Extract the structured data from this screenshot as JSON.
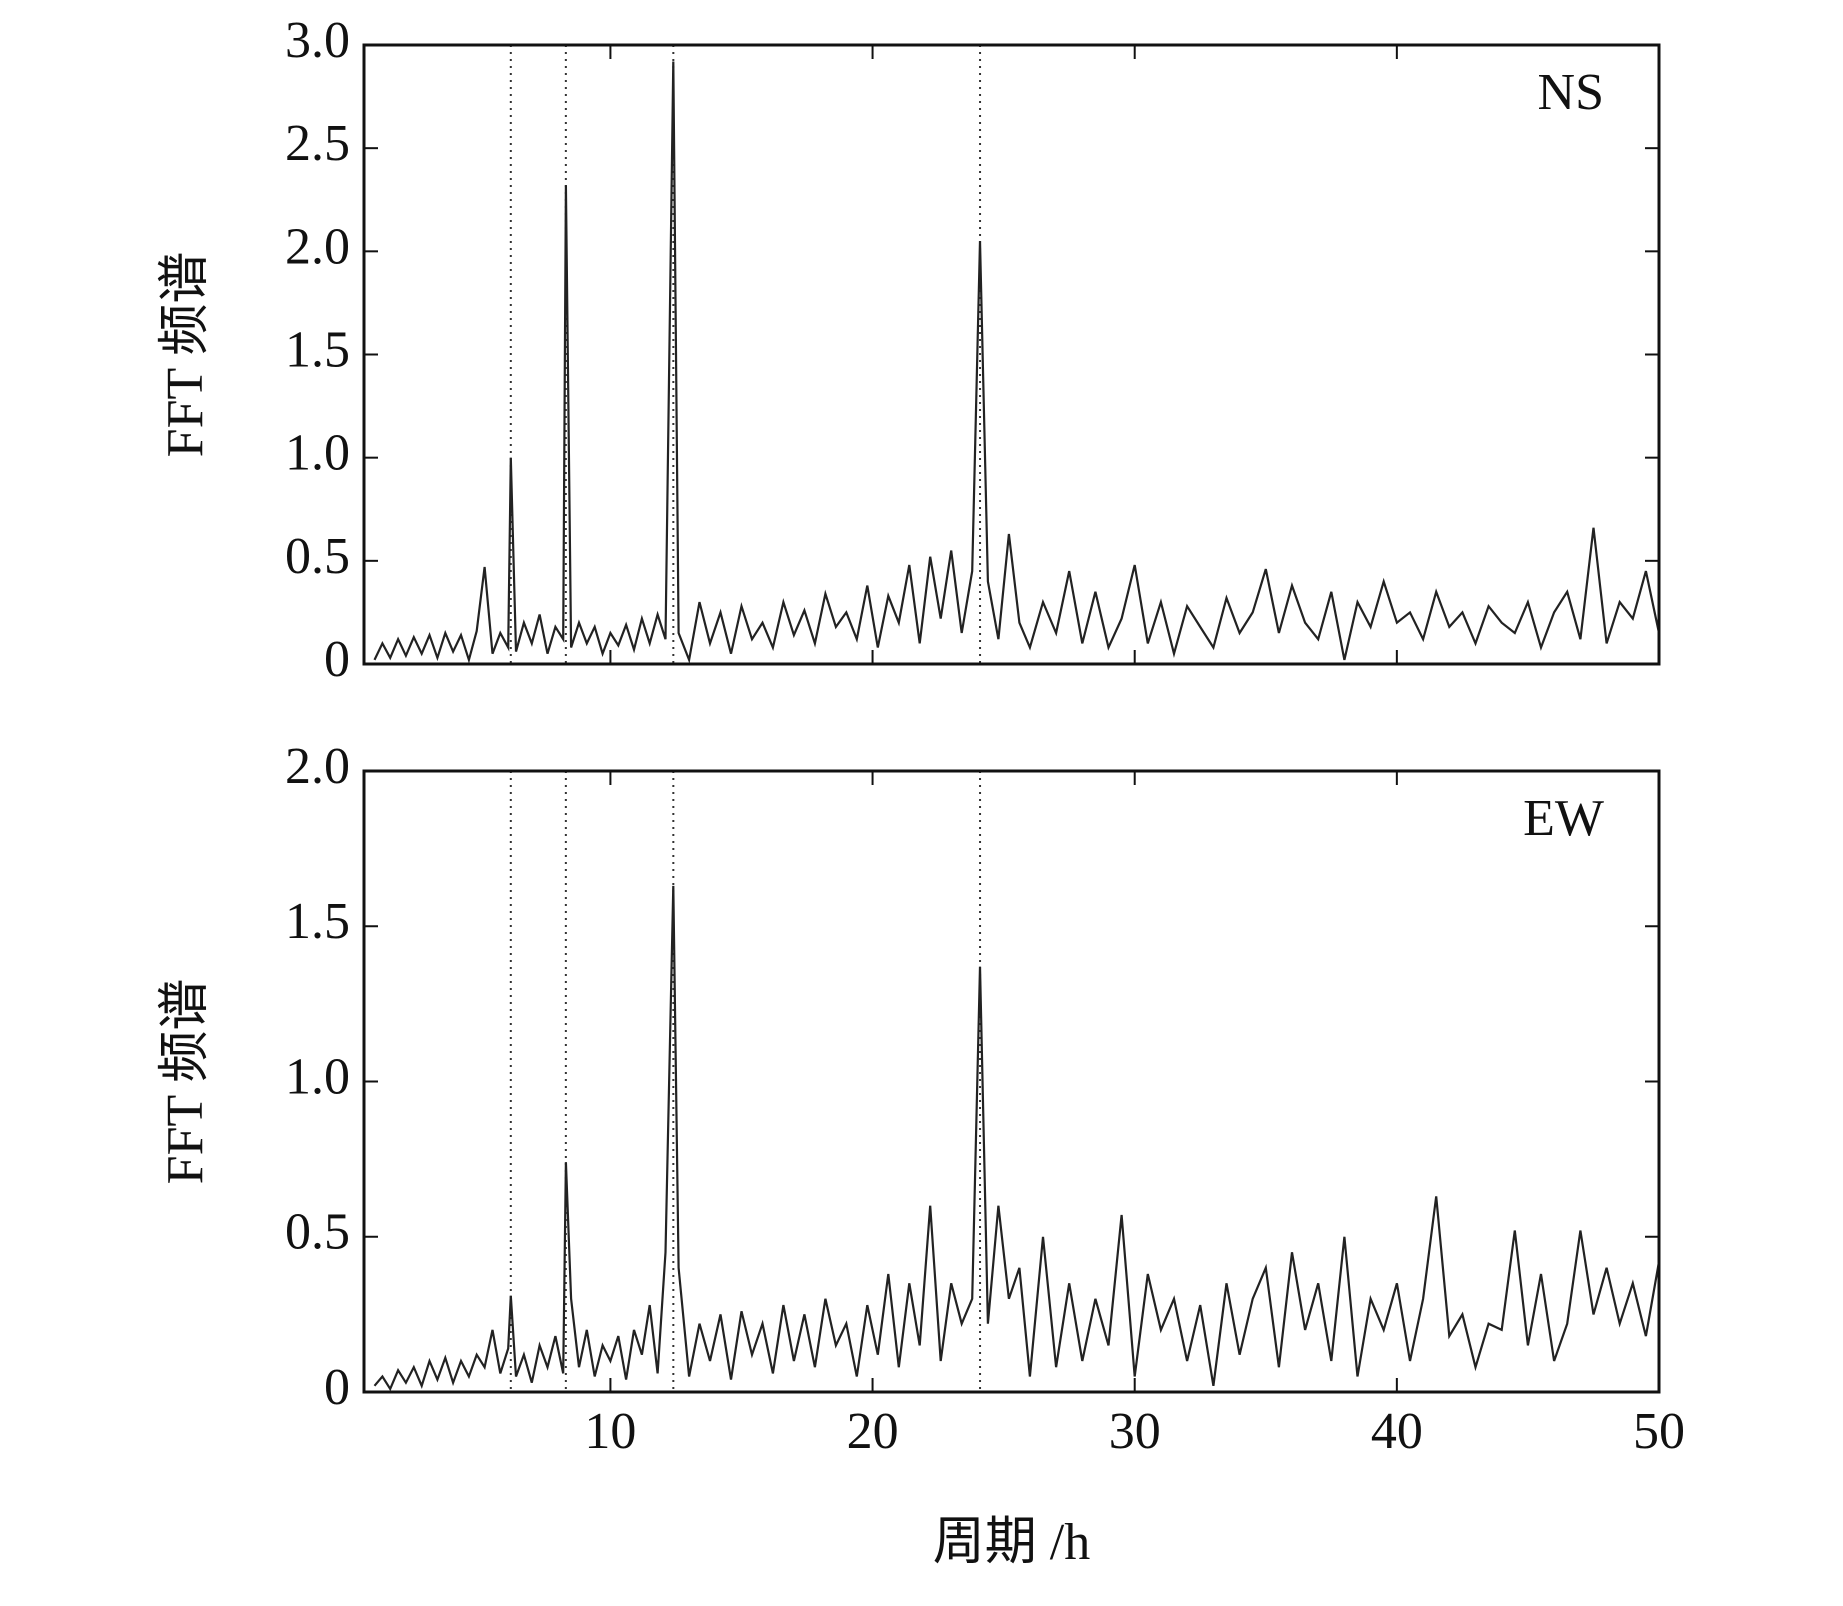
{
  "chart_data": [
    {
      "type": "line",
      "annotation": "NS",
      "ylabel": "FFT 频谱",
      "color": "#222222",
      "xlim": [
        0.6,
        50
      ],
      "ylim": [
        0,
        3.0
      ],
      "yticks": [
        0,
        0.5,
        {
          "value": 1,
          "label": "1.0"
        },
        1.5,
        {
          "value": 2,
          "label": "2.0"
        },
        2.5,
        {
          "value": 3,
          "label": "3.0"
        }
      ],
      "reference_lines": [
        6.2,
        8.3,
        12.4,
        24.1
      ],
      "x": [
        1.0,
        1.3,
        1.6,
        1.9,
        2.2,
        2.5,
        2.8,
        3.1,
        3.4,
        3.7,
        4.0,
        4.3,
        4.6,
        4.9,
        5.2,
        5.5,
        5.8,
        6.1,
        6.2,
        6.4,
        6.7,
        7.0,
        7.3,
        7.6,
        7.9,
        8.2,
        8.3,
        8.5,
        8.8,
        9.1,
        9.4,
        9.7,
        10.0,
        10.3,
        10.6,
        10.9,
        11.2,
        11.5,
        11.8,
        12.1,
        12.4,
        12.6,
        13.0,
        13.4,
        13.8,
        14.2,
        14.6,
        15.0,
        15.4,
        15.8,
        16.2,
        16.6,
        17.0,
        17.4,
        17.8,
        18.2,
        18.6,
        19.0,
        19.4,
        19.8,
        20.2,
        20.6,
        21.0,
        21.4,
        21.8,
        22.2,
        22.6,
        23.0,
        23.4,
        23.8,
        24.1,
        24.4,
        24.8,
        25.2,
        25.6,
        26.0,
        26.5,
        27.0,
        27.5,
        28.0,
        28.5,
        29.0,
        29.5,
        30.0,
        30.5,
        31.0,
        31.5,
        32.0,
        32.5,
        33.0,
        33.5,
        34.0,
        34.5,
        35.0,
        35.5,
        36.0,
        36.5,
        37.0,
        37.5,
        38.0,
        38.5,
        39.0,
        39.5,
        40.0,
        40.5,
        41.0,
        41.5,
        42.0,
        42.5,
        43.0,
        43.5,
        44.0,
        44.5,
        45.0,
        45.5,
        46.0,
        46.5,
        47.0,
        47.5,
        48.0,
        48.5,
        49.0,
        49.5,
        50.0
      ],
      "values": [
        0.02,
        0.1,
        0.03,
        0.12,
        0.04,
        0.13,
        0.05,
        0.14,
        0.03,
        0.15,
        0.06,
        0.14,
        0.02,
        0.16,
        0.47,
        0.05,
        0.15,
        0.08,
        1.0,
        0.06,
        0.2,
        0.1,
        0.24,
        0.05,
        0.18,
        0.12,
        2.32,
        0.08,
        0.2,
        0.1,
        0.18,
        0.05,
        0.15,
        0.09,
        0.19,
        0.07,
        0.22,
        0.1,
        0.24,
        0.12,
        2.92,
        0.15,
        0.02,
        0.3,
        0.1,
        0.25,
        0.05,
        0.28,
        0.12,
        0.2,
        0.08,
        0.3,
        0.14,
        0.26,
        0.1,
        0.34,
        0.18,
        0.25,
        0.12,
        0.38,
        0.08,
        0.33,
        0.2,
        0.48,
        0.1,
        0.52,
        0.22,
        0.55,
        0.15,
        0.45,
        2.05,
        0.4,
        0.12,
        0.63,
        0.2,
        0.08,
        0.3,
        0.15,
        0.45,
        0.1,
        0.35,
        0.08,
        0.22,
        0.48,
        0.1,
        0.3,
        0.05,
        0.28,
        0.18,
        0.08,
        0.32,
        0.15,
        0.25,
        0.46,
        0.15,
        0.38,
        0.2,
        0.12,
        0.35,
        0.02,
        0.3,
        0.18,
        0.4,
        0.2,
        0.25,
        0.12,
        0.35,
        0.18,
        0.25,
        0.1,
        0.28,
        0.2,
        0.15,
        0.3,
        0.08,
        0.25,
        0.35,
        0.12,
        0.66,
        0.1,
        0.3,
        0.22,
        0.45,
        0.15
      ]
    },
    {
      "type": "line",
      "annotation": "EW",
      "ylabel": "FFT 频谱",
      "xlabel": "周期 /h",
      "color": "#222222",
      "xlim": [
        0.6,
        50
      ],
      "ylim": [
        0,
        2.0
      ],
      "xticks": [
        10,
        20,
        30,
        40,
        50
      ],
      "yticks": [
        0,
        0.5,
        {
          "value": 1,
          "label": "1.0"
        },
        1.5,
        {
          "value": 2,
          "label": "2.0"
        }
      ],
      "reference_lines": [
        6.2,
        8.3,
        12.4,
        24.1
      ],
      "x": [
        1.0,
        1.3,
        1.6,
        1.9,
        2.2,
        2.5,
        2.8,
        3.1,
        3.4,
        3.7,
        4.0,
        4.3,
        4.6,
        4.9,
        5.2,
        5.5,
        5.8,
        6.1,
        6.2,
        6.4,
        6.7,
        7.0,
        7.3,
        7.6,
        7.9,
        8.2,
        8.3,
        8.5,
        8.8,
        9.1,
        9.4,
        9.7,
        10.0,
        10.3,
        10.6,
        10.9,
        11.2,
        11.5,
        11.8,
        12.1,
        12.4,
        12.6,
        13.0,
        13.4,
        13.8,
        14.2,
        14.6,
        15.0,
        15.4,
        15.8,
        16.2,
        16.6,
        17.0,
        17.4,
        17.8,
        18.2,
        18.6,
        19.0,
        19.4,
        19.8,
        20.2,
        20.6,
        21.0,
        21.4,
        21.8,
        22.2,
        22.6,
        23.0,
        23.4,
        23.8,
        24.1,
        24.4,
        24.8,
        25.2,
        25.6,
        26.0,
        26.5,
        27.0,
        27.5,
        28.0,
        28.5,
        29.0,
        29.5,
        30.0,
        30.5,
        31.0,
        31.5,
        32.0,
        32.5,
        33.0,
        33.5,
        34.0,
        34.5,
        35.0,
        35.5,
        36.0,
        36.5,
        37.0,
        37.5,
        38.0,
        38.5,
        39.0,
        39.5,
        40.0,
        40.5,
        41.0,
        41.5,
        42.0,
        42.5,
        43.0,
        43.5,
        44.0,
        44.5,
        45.0,
        45.5,
        46.0,
        46.5,
        47.0,
        47.5,
        48.0,
        48.5,
        49.0,
        49.5,
        50.0
      ],
      "values": [
        0.02,
        0.05,
        0.01,
        0.07,
        0.03,
        0.08,
        0.02,
        0.1,
        0.04,
        0.11,
        0.03,
        0.1,
        0.05,
        0.12,
        0.08,
        0.2,
        0.06,
        0.14,
        0.31,
        0.05,
        0.12,
        0.03,
        0.15,
        0.08,
        0.18,
        0.06,
        0.74,
        0.3,
        0.08,
        0.2,
        0.05,
        0.15,
        0.1,
        0.18,
        0.04,
        0.2,
        0.12,
        0.28,
        0.06,
        0.45,
        1.63,
        0.4,
        0.05,
        0.22,
        0.1,
        0.25,
        0.04,
        0.26,
        0.12,
        0.22,
        0.06,
        0.28,
        0.1,
        0.25,
        0.08,
        0.3,
        0.15,
        0.22,
        0.05,
        0.28,
        0.12,
        0.38,
        0.08,
        0.35,
        0.15,
        0.6,
        0.1,
        0.35,
        0.22,
        0.3,
        1.37,
        0.22,
        0.6,
        0.3,
        0.4,
        0.05,
        0.5,
        0.08,
        0.35,
        0.1,
        0.3,
        0.15,
        0.57,
        0.05,
        0.38,
        0.2,
        0.3,
        0.1,
        0.28,
        0.02,
        0.35,
        0.12,
        0.3,
        0.4,
        0.08,
        0.45,
        0.2,
        0.35,
        0.1,
        0.5,
        0.05,
        0.3,
        0.2,
        0.35,
        0.1,
        0.3,
        0.63,
        0.18,
        0.25,
        0.08,
        0.22,
        0.2,
        0.52,
        0.15,
        0.38,
        0.1,
        0.22,
        0.52,
        0.25,
        0.4,
        0.22,
        0.35,
        0.18,
        0.42
      ]
    }
  ]
}
